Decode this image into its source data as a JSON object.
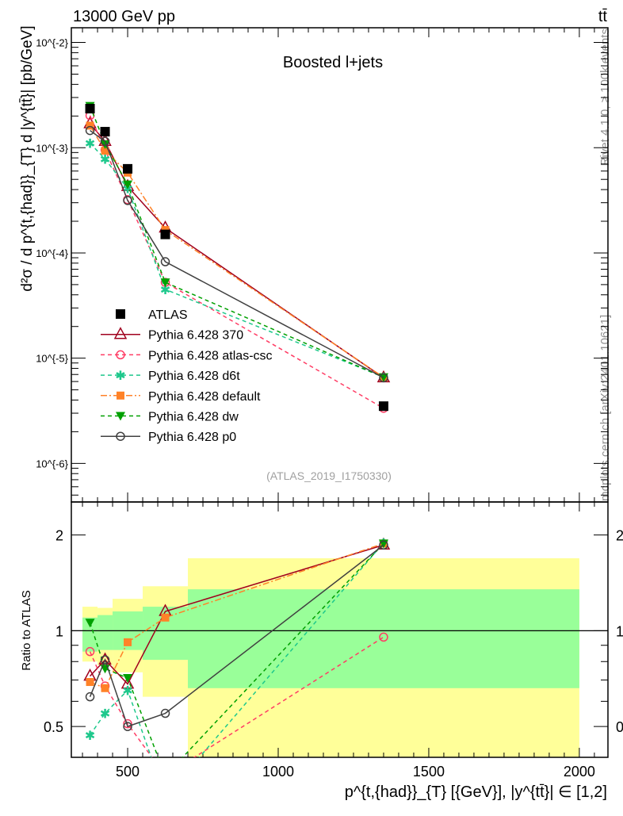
{
  "header": {
    "left": "13000 GeV pp",
    "right": "tt̄"
  },
  "side_labels": {
    "rivet": "Rivet 4.1.0, ≥ 100k events",
    "mcplots": "mcplots.cern.ch [arXiv:2401.10621]"
  },
  "analysis_id": "(ATLAS_2019_I1750330)",
  "colors": {
    "ATLAS": "#000000",
    "370": "#a0001e",
    "atlas-csc": "#ff3c64",
    "d6t": "#1ec88c",
    "default": "#ff8228",
    "dw": "#00a000",
    "p0": "#404040",
    "band_outer": "#ffff99",
    "band_inner": "#99ff99"
  },
  "chart_data": {
    "type": "line",
    "title": "Boosted l+jets",
    "xlabel": "p^{t,{had}}_{T} [{GeV}], |y^{tt̄}| ∈ [1,2]",
    "ylabel": "d²σ / d p^{t,{had}}_{T} d |y^{tt̄}| [pb/GeV]",
    "ratio_ylabel": "Ratio to ATLAS",
    "xlim": [
      313,
      2095
    ],
    "ylim": [
      4.3e-07,
      0.0138
    ],
    "ratio_ylim": [
      0.4,
      2.54
    ],
    "yscale": "log",
    "x_ticks": [
      "500",
      "1000",
      "1500",
      "2000"
    ],
    "y_ticks": [
      "10^{-2}",
      "10^{-3}",
      "10^{-4}",
      "10^{-5}",
      "10^{-6}"
    ],
    "ratio_ticks": [
      "0.5",
      "1",
      "2"
    ],
    "legend_position": "bottom-left",
    "x": [
      375,
      425,
      500,
      625,
      1350
    ],
    "bin_edges": [
      350,
      400,
      450,
      550,
      700,
      2000
    ],
    "data": {
      "name": "ATLAS",
      "values": [
        0.00235,
        0.00142,
        0.00063,
        0.00015,
        3.5e-06
      ]
    },
    "bands": {
      "inner": [
        [
          0.86,
          1.1
        ],
        [
          0.87,
          1.12
        ],
        [
          0.87,
          1.15
        ],
        [
          0.81,
          1.19
        ],
        [
          0.66,
          1.35
        ]
      ],
      "outer": [
        [
          0.8,
          1.19
        ],
        [
          0.78,
          1.18
        ],
        [
          0.74,
          1.26
        ],
        [
          0.62,
          1.38
        ],
        [
          0.4,
          1.69
        ]
      ]
    },
    "series": [
      {
        "name": "Pythia 6.428 370",
        "key": "370",
        "ratio": [
          0.72,
          0.81,
          0.68,
          1.15,
          1.86
        ]
      },
      {
        "name": "Pythia 6.428 atlas-csc",
        "key": "atlas-csc",
        "ratio": [
          0.86,
          0.67,
          0.51,
          0.35,
          0.955
        ]
      },
      {
        "name": "Pythia 6.428 d6t",
        "key": "d6t",
        "ratio": [
          0.47,
          0.55,
          0.65,
          0.3,
          1.89
        ]
      },
      {
        "name": "Pythia 6.428 default",
        "key": "default",
        "ratio": [
          0.69,
          0.66,
          0.92,
          1.1,
          1.88
        ]
      },
      {
        "name": "Pythia 6.428 dw",
        "key": "dw",
        "ratio": [
          1.06,
          0.76,
          0.71,
          0.35,
          1.88
        ]
      },
      {
        "name": "Pythia 6.428 p0",
        "key": "p0",
        "ratio": [
          0.62,
          0.81,
          0.5,
          0.55,
          1.86
        ]
      }
    ]
  }
}
